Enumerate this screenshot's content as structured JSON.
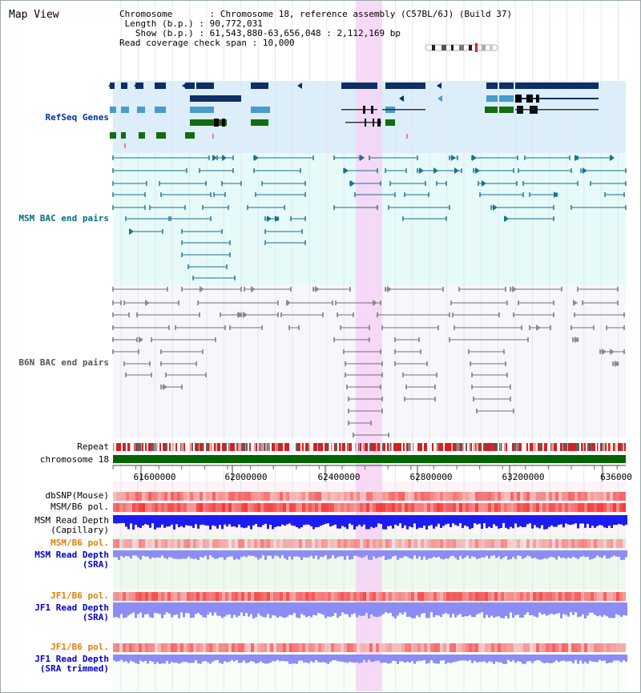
{
  "app": {
    "title": "Map View"
  },
  "info": {
    "chromosome_key": "Chromosome",
    "chromosome_value": "Chromosome 18, reference assembly (C57BL/6J) (Build 37)",
    "length_key": "Length (b.p.)",
    "length_value": "90,772,031",
    "show_key": "Show (b.p.)",
    "show_value": "61,543,880-63,656,048 : 2,112,169 bp",
    "coverage_key": "Read coverage check span",
    "coverage_value": "10,000"
  },
  "tracks": {
    "refseq": "RefSeq Genes",
    "msm_bac": "MSM BAC end pairs",
    "b6n_bac": "B6N BAC end pairs",
    "repeat": "Repeat",
    "chromosome": "chromosome 18",
    "dbsnp": "dbSNP(Mouse)",
    "msm_b6_pol_1": "MSM/B6 pol.",
    "msm_read_depth_cap_1": "MSM Read Depth",
    "msm_read_depth_cap_2": "(Capillary)",
    "msm_b6_pol_2": "MSM/B6 pol.",
    "msm_read_depth_sra_1": "MSM Read Depth",
    "msm_read_depth_sra_2": "(SRA)",
    "jf1_b6_pol_1": "JF1/B6 pol.",
    "jf1_read_depth_sra_1": "JF1 Read Depth",
    "jf1_read_depth_sra_2": "(SRA)",
    "jf1_b6_pol_2": "JF1/B6 pol.",
    "jf1_read_depth_trim_1": "JF1 Read Depth",
    "jf1_read_depth_trim_2": "(SRA trimmed)"
  },
  "axis": {
    "ticks": [
      "61600000",
      "62000000",
      "62400000",
      "62800000",
      "63200000",
      "636000"
    ]
  },
  "colors": {
    "refseq_bg": "#dbeefa",
    "bac_bg": "#e6fafa",
    "highlight": "#f5d3f5",
    "gene_navy": "#0f2f63",
    "gene_blue": "#4a9cc8",
    "gene_green": "#136b13",
    "msm_bac": "#1f6f8b",
    "b6n_bac": "#707070",
    "chromosome_bar": "#006400",
    "depth_capillary": "#1c1cf0",
    "depth_sra": "#8c8cf5",
    "label_navy": "#003399",
    "label_teal": "#006d80",
    "label_gray": "#555555",
    "label_orange": "#e08000",
    "label_blue": "#0000cc"
  }
}
